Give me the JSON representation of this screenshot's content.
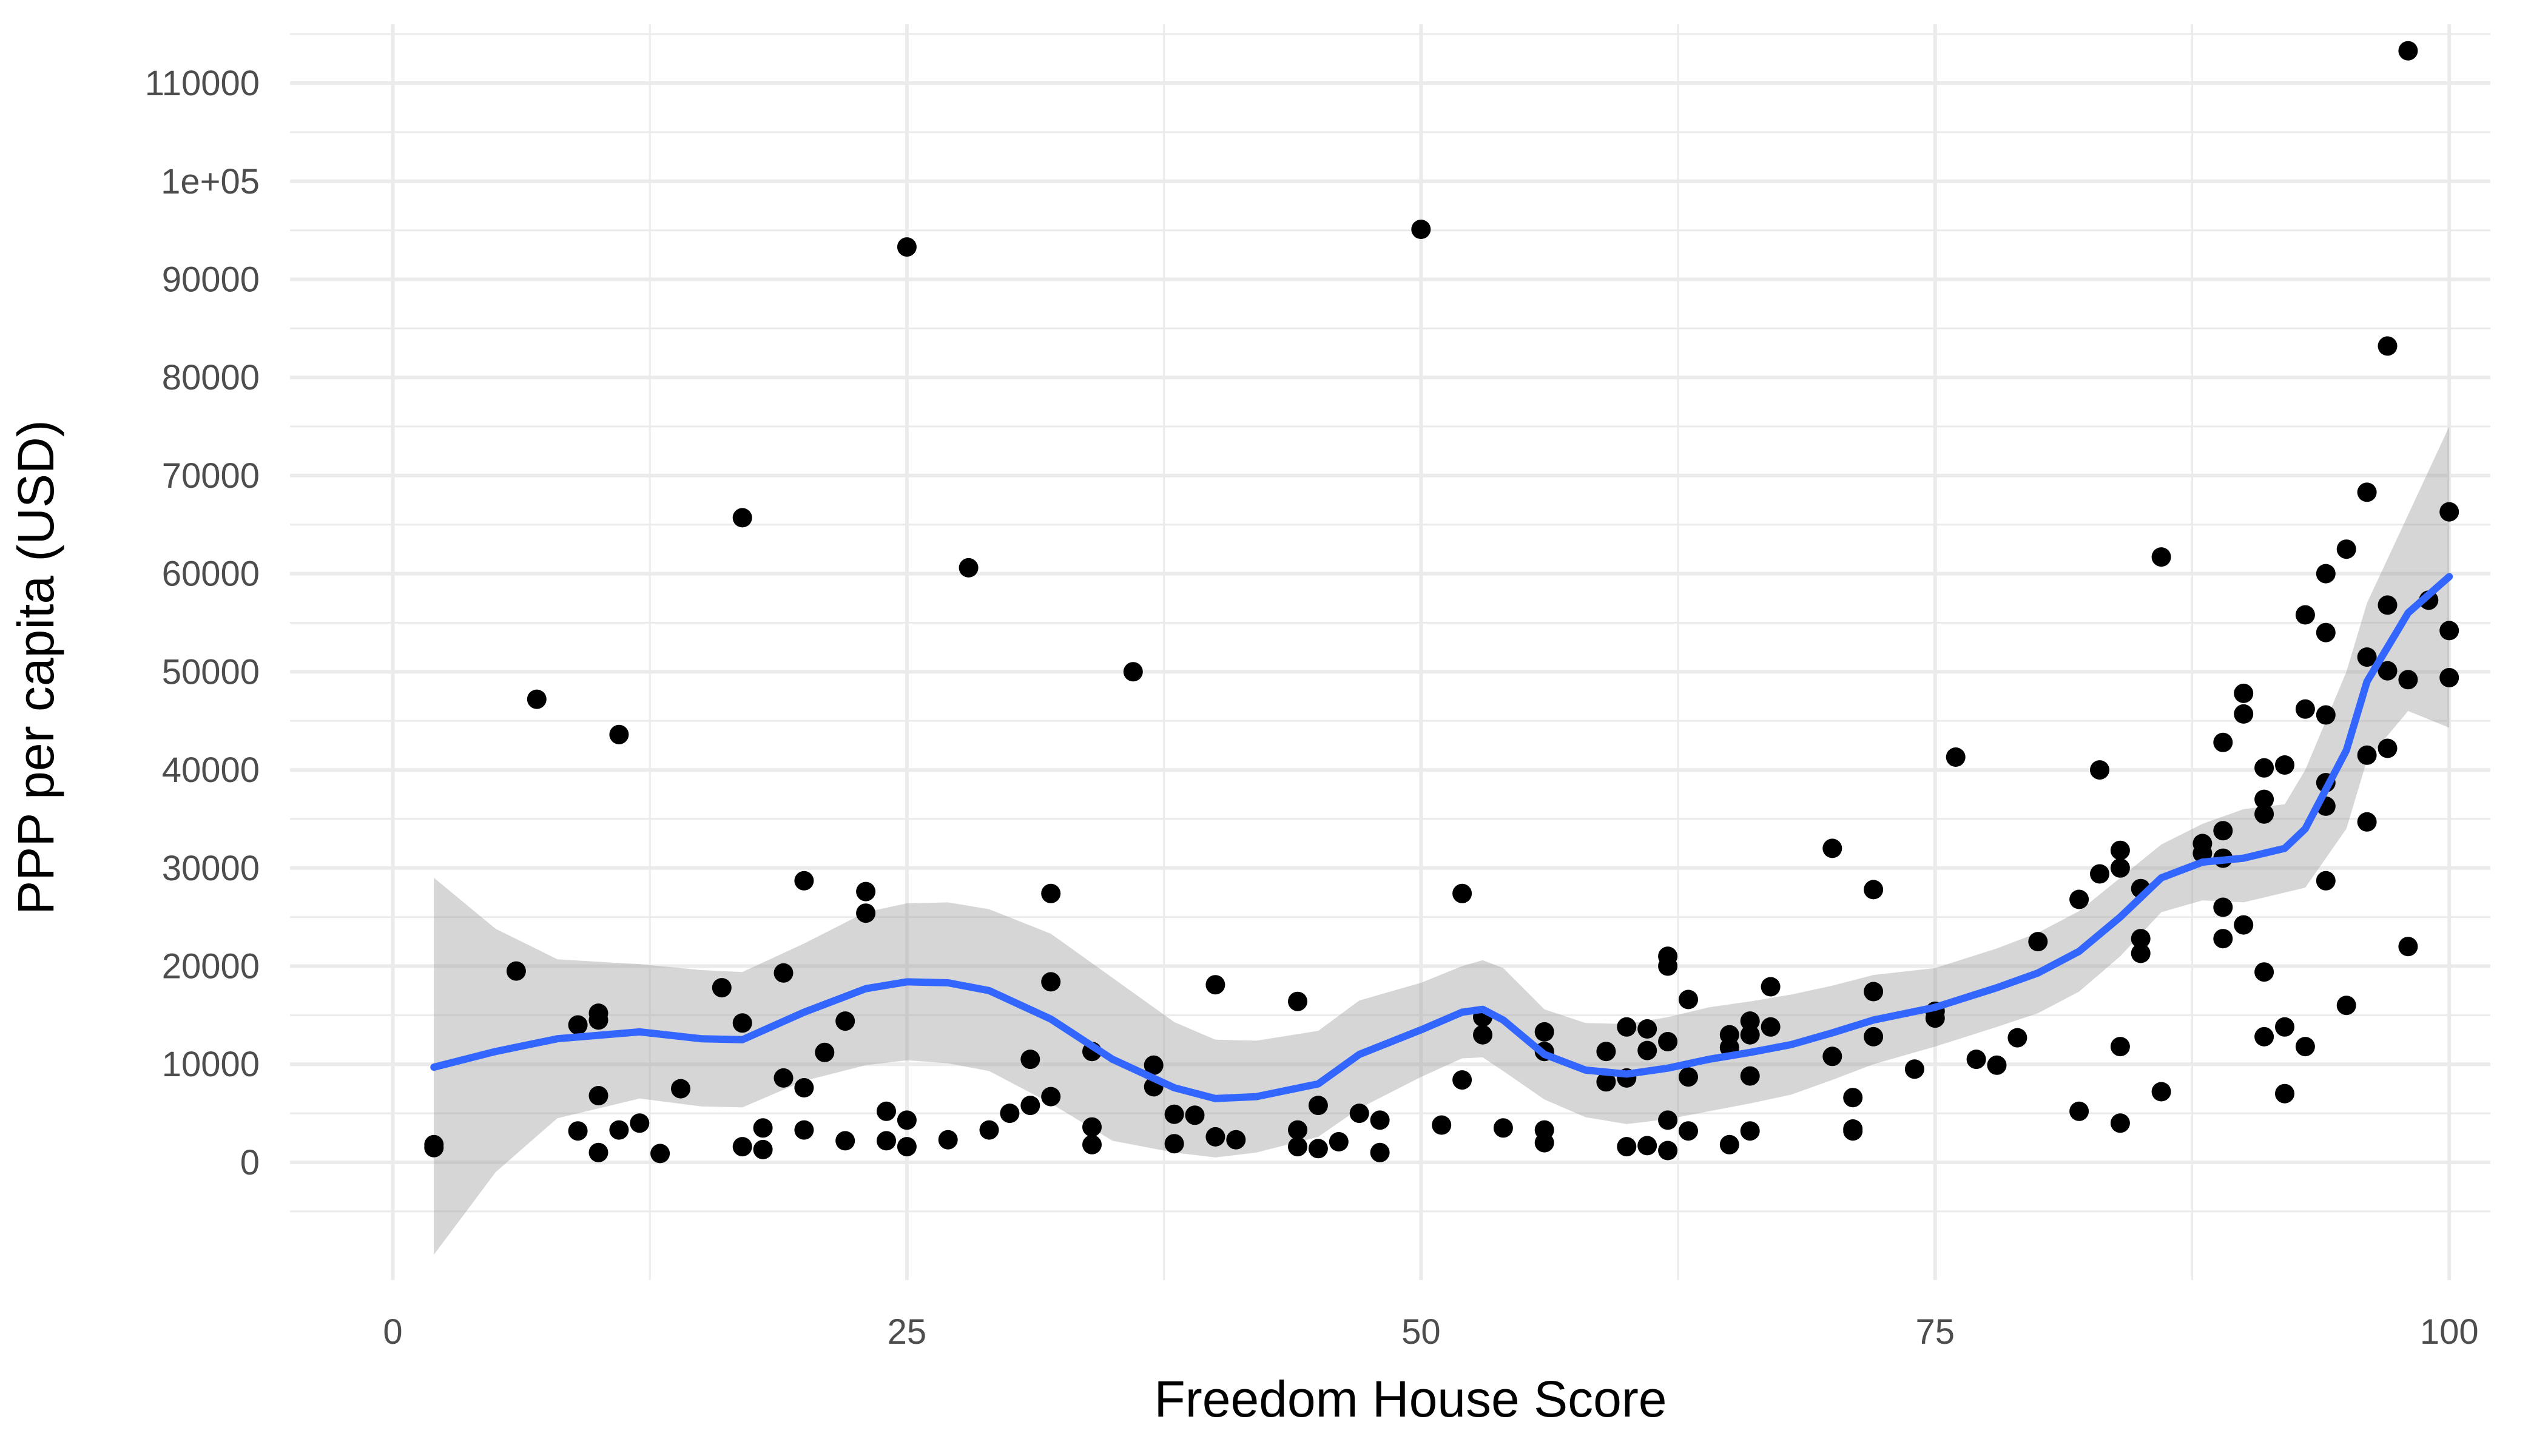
{
  "chart_data": {
    "type": "scatter",
    "xlabel": "Freedom House Score",
    "ylabel": "PPP per capita (USD)",
    "xlim": [
      -5,
      102
    ],
    "ylim": [
      -12000,
      116000
    ],
    "x_ticks": [
      0,
      25,
      50,
      75,
      100
    ],
    "x_tick_labels": [
      "0",
      "25",
      "50",
      "75",
      "100"
    ],
    "y_ticks": [
      0,
      10000,
      20000,
      30000,
      40000,
      50000,
      60000,
      70000,
      80000,
      90000,
      100000,
      110000
    ],
    "y_tick_labels": [
      "0",
      "10000",
      "20000",
      "30000",
      "40000",
      "50000",
      "60000",
      "70000",
      "80000",
      "90000",
      "1e+05",
      "110000"
    ],
    "grid": true,
    "colors": {
      "points": "#000000",
      "smooth_line": "#3366ff",
      "confidence_band": "#999999",
      "grid": "#ebebeb"
    },
    "points": [
      [
        2,
        1800
      ],
      [
        2,
        1500
      ],
      [
        6,
        19500
      ],
      [
        7,
        47200
      ],
      [
        9,
        3200
      ],
      [
        9,
        14000
      ],
      [
        10,
        15200
      ],
      [
        10,
        14500
      ],
      [
        10,
        6800
      ],
      [
        10,
        1000
      ],
      [
        11,
        43600
      ],
      [
        11,
        3300
      ],
      [
        12,
        4000
      ],
      [
        13,
        900
      ],
      [
        14,
        7500
      ],
      [
        16,
        17800
      ],
      [
        17,
        65700
      ],
      [
        17,
        14200
      ],
      [
        17,
        1600
      ],
      [
        18,
        3500
      ],
      [
        18,
        1300
      ],
      [
        19,
        19300
      ],
      [
        19,
        8600
      ],
      [
        20,
        28700
      ],
      [
        20,
        7600
      ],
      [
        20,
        3300
      ],
      [
        21,
        11200
      ],
      [
        22,
        14400
      ],
      [
        22,
        2200
      ],
      [
        23,
        27600
      ],
      [
        23,
        25400
      ],
      [
        24,
        5200
      ],
      [
        24,
        2200
      ],
      [
        25,
        93300
      ],
      [
        25,
        4300
      ],
      [
        25,
        1600
      ],
      [
        27,
        2300
      ],
      [
        28,
        60600
      ],
      [
        29,
        3300
      ],
      [
        30,
        5000
      ],
      [
        31,
        10500
      ],
      [
        31,
        5800
      ],
      [
        32,
        27400
      ],
      [
        32,
        18400
      ],
      [
        32,
        6700
      ],
      [
        34,
        11300
      ],
      [
        34,
        3600
      ],
      [
        34,
        1800
      ],
      [
        36,
        50000
      ],
      [
        37,
        9900
      ],
      [
        37,
        7700
      ],
      [
        38,
        4900
      ],
      [
        38,
        1900
      ],
      [
        39,
        4800
      ],
      [
        40,
        18100
      ],
      [
        40,
        2600
      ],
      [
        41,
        2300
      ],
      [
        44,
        16400
      ],
      [
        44,
        3300
      ],
      [
        44,
        1600
      ],
      [
        45,
        5800
      ],
      [
        45,
        1400
      ],
      [
        46,
        2100
      ],
      [
        47,
        5000
      ],
      [
        48,
        4300
      ],
      [
        48,
        1000
      ],
      [
        50,
        95100
      ],
      [
        51,
        3800
      ],
      [
        52,
        27400
      ],
      [
        52,
        8400
      ],
      [
        53,
        14800
      ],
      [
        53,
        13000
      ],
      [
        54,
        3500
      ],
      [
        56,
        13300
      ],
      [
        56,
        11300
      ],
      [
        56,
        3300
      ],
      [
        56,
        2000
      ],
      [
        59,
        11300
      ],
      [
        59,
        8200
      ],
      [
        60,
        13800
      ],
      [
        60,
        8600
      ],
      [
        60,
        1600
      ],
      [
        61,
        13600
      ],
      [
        61,
        11400
      ],
      [
        61,
        1700
      ],
      [
        62,
        21000
      ],
      [
        62,
        20000
      ],
      [
        62,
        12300
      ],
      [
        62,
        4300
      ],
      [
        62,
        1200
      ],
      [
        63,
        16600
      ],
      [
        63,
        8700
      ],
      [
        63,
        3200
      ],
      [
        65,
        13000
      ],
      [
        65,
        11700
      ],
      [
        65,
        1800
      ],
      [
        66,
        14400
      ],
      [
        66,
        13000
      ],
      [
        66,
        8800
      ],
      [
        66,
        3200
      ],
      [
        67,
        17900
      ],
      [
        67,
        13800
      ],
      [
        70,
        32000
      ],
      [
        70,
        10800
      ],
      [
        71,
        6600
      ],
      [
        71,
        3400
      ],
      [
        71,
        3200
      ],
      [
        72,
        27800
      ],
      [
        72,
        17400
      ],
      [
        72,
        12800
      ],
      [
        74,
        9500
      ],
      [
        75,
        15400
      ],
      [
        75,
        14700
      ],
      [
        76,
        41300
      ],
      [
        77,
        10500
      ],
      [
        78,
        9900
      ],
      [
        79,
        12700
      ],
      [
        80,
        22500
      ],
      [
        82,
        26800
      ],
      [
        82,
        5200
      ],
      [
        83,
        40000
      ],
      [
        83,
        29400
      ],
      [
        84,
        31800
      ],
      [
        84,
        30000
      ],
      [
        84,
        11800
      ],
      [
        84,
        4000
      ],
      [
        85,
        27900
      ],
      [
        85,
        22800
      ],
      [
        85,
        21300
      ],
      [
        86,
        61700
      ],
      [
        86,
        7200
      ],
      [
        88,
        32500
      ],
      [
        88,
        31500
      ],
      [
        89,
        33800
      ],
      [
        89,
        31000
      ],
      [
        89,
        26000
      ],
      [
        89,
        22800
      ],
      [
        89,
        42800
      ],
      [
        90,
        47800
      ],
      [
        90,
        45700
      ],
      [
        90,
        24200
      ],
      [
        91,
        40200
      ],
      [
        91,
        37000
      ],
      [
        91,
        35500
      ],
      [
        91,
        19400
      ],
      [
        91,
        12800
      ],
      [
        92,
        40500
      ],
      [
        92,
        13800
      ],
      [
        92,
        7000
      ],
      [
        93,
        55800
      ],
      [
        93,
        46200
      ],
      [
        93,
        11800
      ],
      [
        94,
        60000
      ],
      [
        94,
        54000
      ],
      [
        94,
        45600
      ],
      [
        94,
        38700
      ],
      [
        94,
        36300
      ],
      [
        94,
        28700
      ],
      [
        95,
        62500
      ],
      [
        95,
        16000
      ],
      [
        96,
        68300
      ],
      [
        96,
        51500
      ],
      [
        96,
        41500
      ],
      [
        96,
        34700
      ],
      [
        97,
        83200
      ],
      [
        97,
        56800
      ],
      [
        97,
        50100
      ],
      [
        97,
        42200
      ],
      [
        98,
        113300
      ],
      [
        98,
        49200
      ],
      [
        98,
        22000
      ],
      [
        99,
        57300
      ],
      [
        100,
        66300
      ],
      [
        100,
        54200
      ],
      [
        100,
        49400
      ]
    ],
    "smooth": {
      "x": [
        2,
        5,
        8,
        12,
        15,
        17,
        20,
        23,
        25,
        27,
        29,
        32,
        35,
        38,
        40,
        42,
        45,
        47,
        50,
        52,
        53,
        54,
        56,
        58,
        60,
        62,
        64,
        66,
        68,
        70,
        72,
        75,
        78,
        80,
        82,
        84,
        86,
        88,
        90,
        92,
        93,
        95,
        96,
        98,
        100
      ],
      "y": [
        9700,
        11300,
        12600,
        13300,
        12600,
        12500,
        15300,
        17700,
        18400,
        18300,
        17500,
        14600,
        10500,
        7600,
        6500,
        6700,
        8000,
        11000,
        13500,
        15300,
        15600,
        14500,
        11000,
        9400,
        9000,
        9600,
        10500,
        11200,
        12000,
        13200,
        14500,
        15800,
        17800,
        19300,
        21500,
        25000,
        29000,
        30600,
        31000,
        32000,
        34000,
        42000,
        49000,
        56000,
        59700
      ],
      "upper": [
        29000,
        23800,
        20700,
        20200,
        19600,
        19400,
        22300,
        25500,
        26400,
        26500,
        25800,
        23300,
        18800,
        14300,
        12500,
        12400,
        13400,
        16500,
        18300,
        20000,
        20600,
        19800,
        15600,
        14200,
        14100,
        14800,
        15800,
        16400,
        17100,
        18000,
        19100,
        19800,
        21800,
        23400,
        25600,
        29000,
        32400,
        34500,
        36000,
        36500,
        40000,
        50000,
        57000,
        66000,
        75000
      ],
      "lower": [
        -9400,
        -1000,
        4500,
        6500,
        5700,
        5600,
        8300,
        9900,
        10400,
        10100,
        9300,
        6000,
        2200,
        1000,
        500,
        1000,
        2600,
        5500,
        8700,
        10600,
        10700,
        9300,
        6400,
        4600,
        3900,
        4400,
        5200,
        6000,
        6900,
        8400,
        10000,
        11800,
        13800,
        15200,
        17400,
        21000,
        25500,
        26700,
        26500,
        27500,
        28000,
        34000,
        41000,
        46000,
        44300
      ]
    }
  }
}
